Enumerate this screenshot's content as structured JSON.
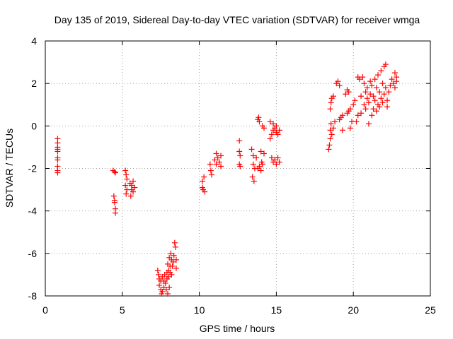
{
  "chart_data": {
    "type": "scatter",
    "title": "Day 135 of 2019, Sidereal Day-to-day VTEC variation (SDTVAR) for receiver wmga",
    "xlabel": "GPS time / hours",
    "ylabel": "SDTVAR / TECUs",
    "xlim": [
      0,
      25
    ],
    "ylim": [
      -8,
      4
    ],
    "grid": true,
    "legend": "none",
    "x_ticks": [
      0,
      5,
      10,
      15,
      20,
      25
    ],
    "x_tick_labels": [
      "0",
      "5",
      "10",
      "15",
      "20",
      "25"
    ],
    "y_ticks": [
      -8,
      -6,
      -4,
      -2,
      0,
      2,
      4
    ],
    "y_tick_labels": [
      "-8",
      "-6",
      "-4",
      "-2",
      "0",
      "2",
      "4"
    ],
    "marker": "plus",
    "color": "#ff0000",
    "series": [
      {
        "name": "SDTVAR",
        "points": [
          [
            0.8,
            -0.6
          ],
          [
            0.8,
            -0.8
          ],
          [
            0.8,
            -1.0
          ],
          [
            0.8,
            -1.1
          ],
          [
            0.8,
            -1.2
          ],
          [
            0.8,
            -1.5
          ],
          [
            0.8,
            -1.6
          ],
          [
            0.8,
            -1.9
          ],
          [
            0.8,
            -2.1
          ],
          [
            0.8,
            -2.2
          ],
          [
            4.4,
            -2.1
          ],
          [
            4.5,
            -2.15
          ],
          [
            4.55,
            -2.2
          ],
          [
            4.45,
            -3.3
          ],
          [
            4.5,
            -3.5
          ],
          [
            4.5,
            -3.6
          ],
          [
            4.55,
            -3.9
          ],
          [
            4.55,
            -4.1
          ],
          [
            5.2,
            -2.1
          ],
          [
            5.25,
            -2.3
          ],
          [
            5.3,
            -2.5
          ],
          [
            5.2,
            -2.8
          ],
          [
            5.3,
            -3.0
          ],
          [
            5.25,
            -3.2
          ],
          [
            5.5,
            -2.7
          ],
          [
            5.6,
            -2.8
          ],
          [
            5.6,
            -3.0
          ],
          [
            5.7,
            -2.6
          ],
          [
            5.7,
            -3.1
          ],
          [
            5.8,
            -2.9
          ],
          [
            5.55,
            -3.3
          ],
          [
            7.3,
            -6.8
          ],
          [
            7.35,
            -7.0
          ],
          [
            7.4,
            -7.2
          ],
          [
            7.4,
            -7.5
          ],
          [
            7.5,
            -7.3
          ],
          [
            7.5,
            -7.7
          ],
          [
            7.55,
            -7.9
          ],
          [
            7.6,
            -7.1
          ],
          [
            7.6,
            -7.8
          ],
          [
            7.7,
            -7.6
          ],
          [
            7.7,
            -7.3
          ],
          [
            7.75,
            -7.0
          ],
          [
            7.8,
            -7.4
          ],
          [
            7.85,
            -7.7
          ],
          [
            7.9,
            -6.9
          ],
          [
            7.9,
            -7.2
          ],
          [
            7.95,
            -6.5
          ],
          [
            8.0,
            -6.8
          ],
          [
            8.0,
            -7.1
          ],
          [
            8.05,
            -6.2
          ],
          [
            8.1,
            -6.6
          ],
          [
            8.1,
            -6.9
          ],
          [
            8.15,
            -6.0
          ],
          [
            8.2,
            -6.3
          ],
          [
            8.2,
            -7.0
          ],
          [
            8.25,
            -6.6
          ],
          [
            8.3,
            -6.4
          ],
          [
            8.35,
            -6.1
          ],
          [
            8.4,
            -5.5
          ],
          [
            8.45,
            -5.7
          ],
          [
            8.5,
            -6.3
          ],
          [
            8.5,
            -6.7
          ],
          [
            8.05,
            -7.6
          ],
          [
            7.95,
            -7.9
          ],
          [
            10.2,
            -2.6
          ],
          [
            10.3,
            -2.4
          ],
          [
            10.25,
            -3.0
          ],
          [
            10.35,
            -3.1
          ],
          [
            10.2,
            -2.9
          ],
          [
            10.7,
            -1.8
          ],
          [
            10.75,
            -2.1
          ],
          [
            10.8,
            -2.3
          ],
          [
            11.0,
            -1.6
          ],
          [
            11.1,
            -1.3
          ],
          [
            11.1,
            -1.8
          ],
          [
            11.2,
            -1.5
          ],
          [
            11.3,
            -1.7
          ],
          [
            11.4,
            -1.4
          ],
          [
            11.4,
            -1.9
          ],
          [
            12.6,
            -0.7
          ],
          [
            12.6,
            -1.2
          ],
          [
            12.65,
            -1.4
          ],
          [
            12.6,
            -1.8
          ],
          [
            12.65,
            -1.9
          ],
          [
            13.4,
            -1.1
          ],
          [
            13.5,
            -1.4
          ],
          [
            13.5,
            -1.8
          ],
          [
            13.45,
            -2.4
          ],
          [
            13.55,
            -2.6
          ],
          [
            13.6,
            -2.0
          ],
          [
            13.7,
            -1.5
          ],
          [
            13.8,
            -2.0
          ],
          [
            13.8,
            0.3
          ],
          [
            13.85,
            0.4
          ],
          [
            13.9,
            0.2
          ],
          [
            13.9,
            -1.9
          ],
          [
            14.0,
            -1.2
          ],
          [
            14.0,
            -2.1
          ],
          [
            14.05,
            -1.7
          ],
          [
            14.1,
            0.0
          ],
          [
            14.2,
            -0.1
          ],
          [
            14.2,
            -1.3
          ],
          [
            14.1,
            -1.8
          ],
          [
            14.6,
            0.2
          ],
          [
            14.6,
            -0.6
          ],
          [
            14.7,
            -0.4
          ],
          [
            14.7,
            -1.5
          ],
          [
            14.8,
            0.1
          ],
          [
            14.8,
            -0.2
          ],
          [
            14.8,
            -1.7
          ],
          [
            14.9,
            -0.1
          ],
          [
            14.9,
            -1.6
          ],
          [
            15.0,
            0.0
          ],
          [
            15.0,
            -0.3
          ],
          [
            15.0,
            -1.8
          ],
          [
            15.1,
            -0.4
          ],
          [
            15.1,
            -1.5
          ],
          [
            15.2,
            -0.2
          ],
          [
            15.2,
            -1.7
          ],
          [
            18.4,
            -1.1
          ],
          [
            18.45,
            -0.9
          ],
          [
            18.5,
            -0.6
          ],
          [
            18.5,
            -0.2
          ],
          [
            18.6,
            -0.4
          ],
          [
            18.55,
            0.1
          ],
          [
            18.7,
            -0.1
          ],
          [
            18.8,
            0.2
          ],
          [
            18.5,
            0.8
          ],
          [
            18.55,
            1.1
          ],
          [
            18.6,
            1.3
          ],
          [
            18.7,
            1.4
          ],
          [
            18.9,
            2.0
          ],
          [
            19.0,
            2.1
          ],
          [
            19.1,
            1.9
          ],
          [
            19.1,
            0.3
          ],
          [
            19.2,
            0.4
          ],
          [
            19.3,
            0.5
          ],
          [
            19.3,
            -0.2
          ],
          [
            19.5,
            1.5
          ],
          [
            19.6,
            1.7
          ],
          [
            19.7,
            1.6
          ],
          [
            19.6,
            0.6
          ],
          [
            19.7,
            0.7
          ],
          [
            19.8,
            0.8
          ],
          [
            19.8,
            -0.1
          ],
          [
            19.9,
            0.2
          ],
          [
            20.0,
            1.0
          ],
          [
            20.1,
            1.2
          ],
          [
            20.2,
            0.2
          ],
          [
            20.3,
            0.5
          ],
          [
            20.3,
            2.3
          ],
          [
            20.4,
            2.2
          ],
          [
            20.5,
            1.4
          ],
          [
            20.5,
            0.6
          ],
          [
            20.6,
            2.3
          ],
          [
            20.7,
            2.0
          ],
          [
            20.7,
            1.0
          ],
          [
            20.8,
            1.6
          ],
          [
            20.8,
            0.8
          ],
          [
            20.9,
            1.8
          ],
          [
            20.9,
            1.3
          ],
          [
            21.0,
            1.1
          ],
          [
            21.0,
            0.1
          ],
          [
            21.1,
            2.1
          ],
          [
            21.1,
            1.5
          ],
          [
            21.2,
            0.5
          ],
          [
            21.2,
            1.9
          ],
          [
            21.3,
            1.4
          ],
          [
            21.3,
            0.8
          ],
          [
            21.4,
            2.2
          ],
          [
            21.4,
            1.2
          ],
          [
            21.5,
            0.7
          ],
          [
            21.5,
            1.8
          ],
          [
            21.6,
            2.4
          ],
          [
            21.6,
            1.0
          ],
          [
            21.7,
            1.6
          ],
          [
            21.7,
            0.9
          ],
          [
            21.8,
            2.6
          ],
          [
            21.8,
            1.3
          ],
          [
            21.9,
            2.0
          ],
          [
            21.9,
            1.1
          ],
          [
            22.0,
            2.8
          ],
          [
            22.0,
            1.5
          ],
          [
            22.1,
            2.9
          ],
          [
            22.1,
            1.8
          ],
          [
            22.2,
            1.2
          ],
          [
            22.2,
            0.9
          ],
          [
            22.3,
            1.6
          ],
          [
            22.4,
            1.9
          ],
          [
            22.5,
            2.2
          ],
          [
            22.6,
            2.0
          ],
          [
            22.7,
            2.5
          ],
          [
            22.7,
            1.8
          ],
          [
            22.8,
            2.3
          ],
          [
            22.8,
            2.1
          ]
        ]
      }
    ]
  }
}
